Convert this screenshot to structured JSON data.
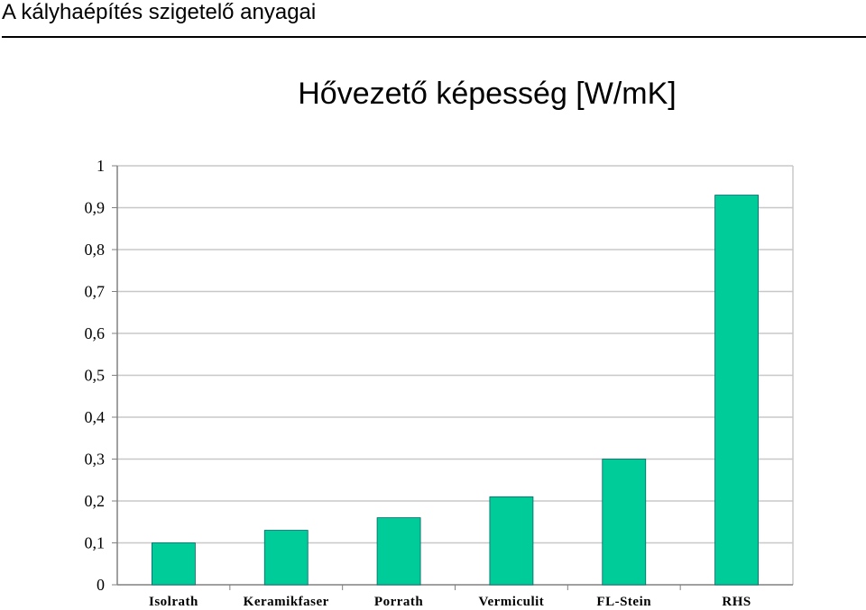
{
  "header": {
    "title": "A kályhaépítés szigetelő anyagai"
  },
  "chart_data": {
    "type": "bar",
    "title": "Hővezető képesség [W/mK]",
    "xlabel": "",
    "ylabel": "",
    "categories": [
      "Isolrath",
      "Keramikfaser",
      "Porrath",
      "Vermiculit",
      "FL-Stein",
      "RHS"
    ],
    "values": [
      0.1,
      0.13,
      0.16,
      0.21,
      0.3,
      0.93
    ],
    "ylim": [
      0,
      1
    ],
    "yticks": [
      "0",
      "0,1",
      "0,2",
      "0,3",
      "0,4",
      "0,5",
      "0,6",
      "0,7",
      "0,8",
      "0,9",
      "1"
    ],
    "grid": true,
    "legend": "none",
    "colors": {
      "bar": "#00CC99",
      "bar_border": "#006666",
      "grid": "#c8c8c8",
      "axis": "#808080"
    }
  }
}
